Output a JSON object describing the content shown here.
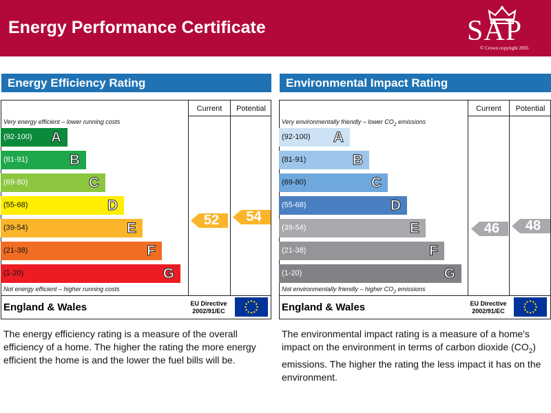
{
  "header": {
    "title": "Energy Performance Certificate",
    "logo_text": "SAP",
    "logo_copyright": "© Crown copyright 2005"
  },
  "columns": {
    "current": "Current",
    "potential": "Potential"
  },
  "footer": {
    "region": "England & Wales",
    "directive_line1": "EU Directive",
    "directive_line2": "2002/91/EC"
  },
  "energy": {
    "title": "Energy Efficiency Rating",
    "top_note": "Very energy efficient – lower running costs",
    "bottom_note": "Not energy efficient – higher running costs",
    "current": "52",
    "potential": "54",
    "bands": [
      {
        "range": "(92-100)",
        "letter": "A",
        "color": "#0a8a3a"
      },
      {
        "range": "(81-91)",
        "letter": "B",
        "color": "#1fa74b"
      },
      {
        "range": "(69-80)",
        "letter": "C",
        "color": "#8cc63f"
      },
      {
        "range": "(55-68)",
        "letter": "D",
        "color": "#ffee00"
      },
      {
        "range": "(39-54)",
        "letter": "E",
        "color": "#fbb52b"
      },
      {
        "range": "(21-38)",
        "letter": "F",
        "color": "#f26d24"
      },
      {
        "range": "(1-20)",
        "letter": "G",
        "color": "#ed1c24"
      }
    ],
    "description": "The energy efficiency rating is a measure of the overall efficiency of a home. The higher the rating the more energy efficient the home is and the lower the fuel bills will be."
  },
  "environment": {
    "title": "Environmental Impact Rating",
    "top_note_prefix": "Very environmentally friendly – lower CO",
    "top_note_suffix": " emissions",
    "bottom_note_prefix": "Not environmentally friendly – higher CO",
    "bottom_note_suffix": " emissions",
    "subscript": "2",
    "current": "46",
    "potential": "48",
    "bands": [
      {
        "range": "(92-100)",
        "letter": "A",
        "color": "#cde3f5"
      },
      {
        "range": "(81-91)",
        "letter": "B",
        "color": "#9cc5e9"
      },
      {
        "range": "(69-80)",
        "letter": "C",
        "color": "#6fa8dc"
      },
      {
        "range": "(55-68)",
        "letter": "D",
        "color": "#4a7fc1"
      },
      {
        "range": "(39-54)",
        "letter": "E",
        "color": "#a7a9ac"
      },
      {
        "range": "(21-38)",
        "letter": "F",
        "color": "#939598"
      },
      {
        "range": "(1-20)",
        "letter": "G",
        "color": "#808285"
      }
    ],
    "description_part1": "The environmental impact rating is a measure of a home's impact on the environment in terms of carbon dioxide (CO",
    "description_part2": ") emissions. The higher the rating the less impact it has on the environment."
  },
  "colors": {
    "header_bg": "#b3093a",
    "panel_title_bg": "#1f73b4",
    "energy_arrow": "#fbb52b",
    "environment_arrow": "#a7a9ac",
    "eu_flag_blue": "#003399",
    "eu_star": "#ffdd00"
  },
  "icons": {
    "crown": "crown-icon",
    "eu_flag": "eu-flag-icon"
  }
}
